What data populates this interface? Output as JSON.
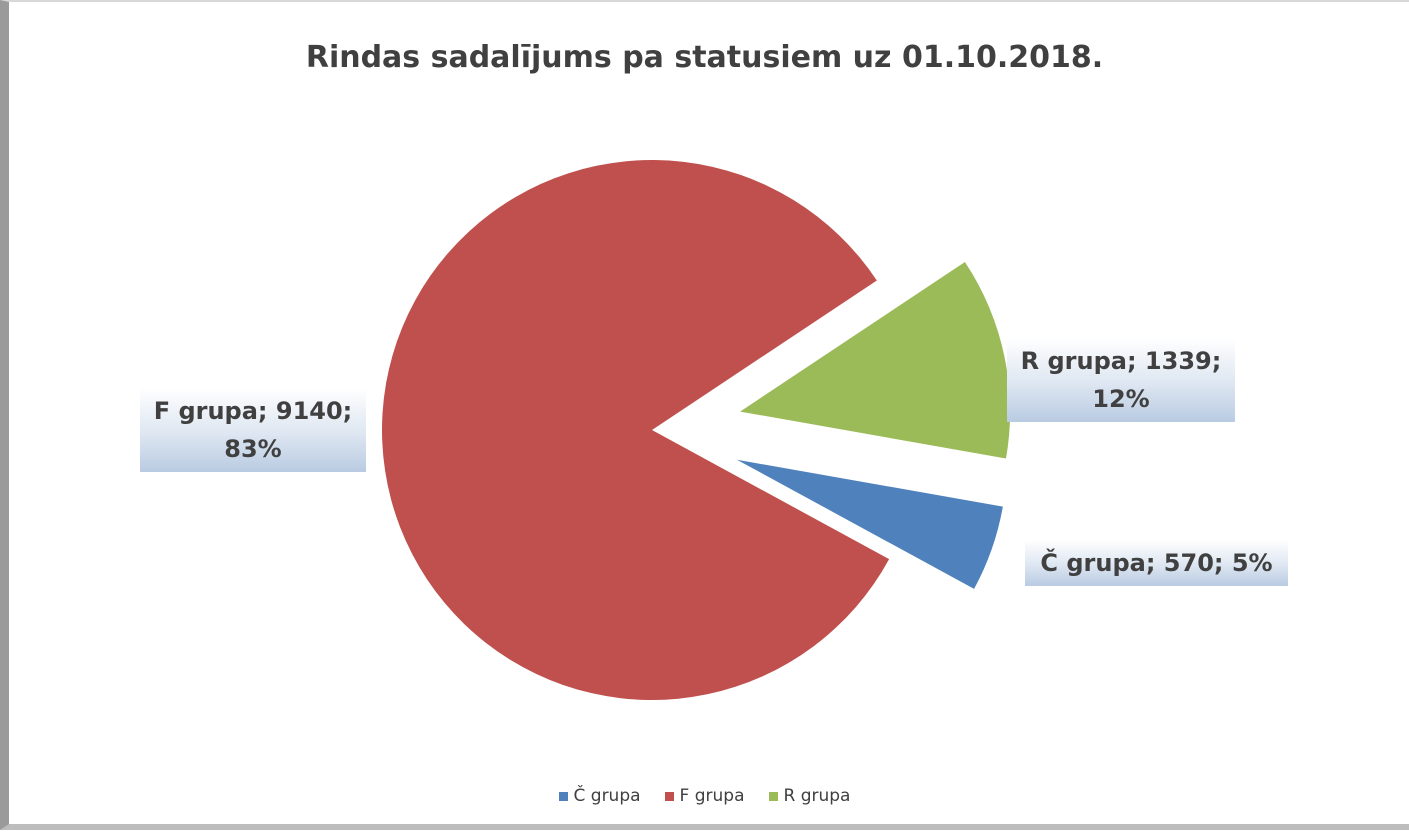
{
  "chart_data": {
    "type": "pie",
    "title": "Rindas sadalījums pa statusiem uz 01.10.2018.",
    "categories": [
      "Č grupa",
      "F grupa",
      "R grupa"
    ],
    "values": [
      570,
      9140,
      1339
    ],
    "value_labels": [
      "Č grupa; 570; 5%",
      "F grupa; 9140; 83%",
      "R grupa; 1339; 12%"
    ],
    "colors": [
      "#4f81bd",
      "#c0504d",
      "#9bbb59"
    ],
    "explode": [
      true,
      false,
      true
    ],
    "legend": "bottom"
  }
}
